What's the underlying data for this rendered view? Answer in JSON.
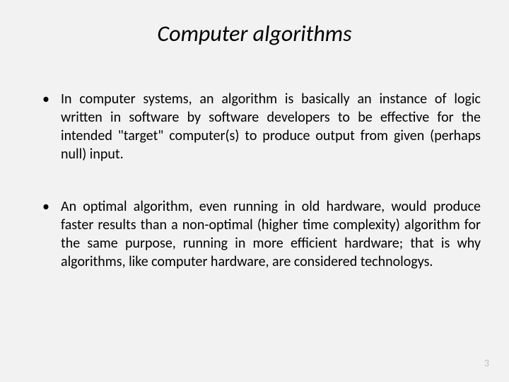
{
  "slide": {
    "title": "Computer algorithms",
    "bullets": [
      "In computer systems, an algorithm is basically an instance of logic written in software by software developers to be effective for the intended \"target\" computer(s) to produce output from given (perhaps null) input.",
      "An optimal algorithm, even running in old hardware, would produce faster results than a non-optimal (higher time complexity) algorithm for the same purpose, running in more efficient hardware; that is why algorithms, like computer hardware, are considered technologys."
    ],
    "page_number": "3",
    "background_color": "#f2f2f2",
    "title_fontsize": 32,
    "body_fontsize": 20,
    "page_number_color": "#bfbfbf"
  }
}
